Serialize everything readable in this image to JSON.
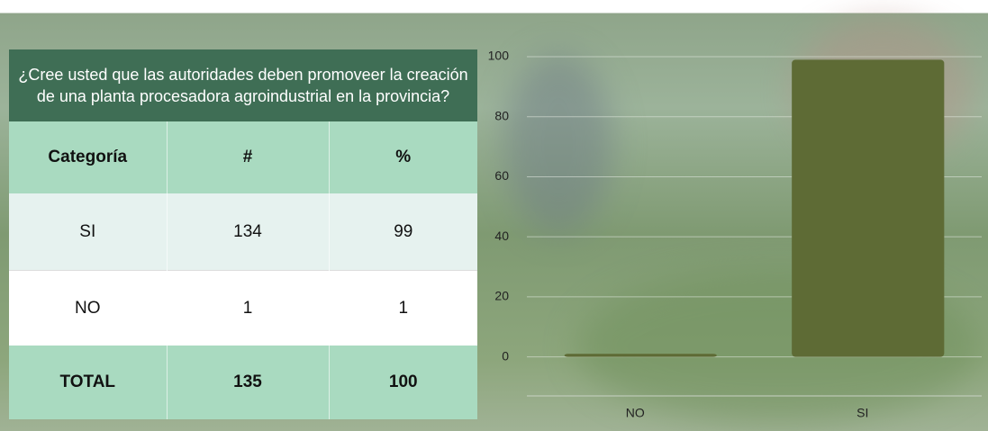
{
  "table": {
    "title": "¿Cree usted que las autoridades deben promoveer la creación de una planta procesadora agroindustrial en la provincia?",
    "header": [
      "Categoría",
      "#",
      "%"
    ],
    "rows": [
      [
        "SI",
        134,
        99
      ],
      [
        "NO",
        1,
        1
      ],
      [
        "TOTAL",
        135,
        100
      ]
    ]
  },
  "chart_data": {
    "type": "bar",
    "categories": [
      "NO",
      "SI"
    ],
    "values": [
      1,
      99
    ],
    "color": "#5e6b35",
    "ylim": [
      -13,
      100
    ],
    "yticks": [
      0,
      20,
      40,
      60,
      80,
      100
    ],
    "grid": true
  }
}
